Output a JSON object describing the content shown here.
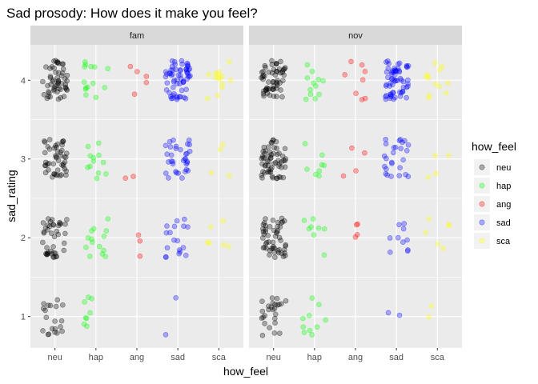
{
  "chart_data": {
    "type": "scatter",
    "title": "Sad prosody: How does it make you feel?",
    "xlabel": "how_feel",
    "ylabel": "sad_rating",
    "ylim": [
      0.6,
      4.45
    ],
    "categories": [
      "neu",
      "hap",
      "ang",
      "sad",
      "sca"
    ],
    "yticks": [
      1,
      2,
      3,
      4
    ],
    "jitter": {
      "x": 0.3,
      "y": 0.25
    },
    "facets": [
      "fam",
      "nov"
    ],
    "legend": {
      "title": "how_feel",
      "placement": "right",
      "entries": [
        "neu",
        "hap",
        "ang",
        "sad",
        "sca"
      ]
    },
    "colors": {
      "neu": "#000000",
      "hap": "#00ff00",
      "ang": "#ff0000",
      "sad": "#0000ff",
      "sca": "#ffff00",
      "panel_bg": "#ebebeb",
      "strip_bg": "#d9d9d9",
      "grid": "#ffffff"
    },
    "point_alpha": 0.3,
    "counts": {
      "fam": {
        "neu": [
          20,
          42,
          48,
          55
        ],
        "hap": [
          8,
          14,
          12,
          14
        ],
        "ang": [
          0,
          3,
          2,
          5
        ],
        "sad": [
          2,
          18,
          34,
          62
        ],
        "sca": [
          0,
          6,
          4,
          14
        ]
      },
      "nov": {
        "neu": [
          26,
          52,
          60,
          58
        ],
        "hap": [
          10,
          8,
          8,
          12
        ],
        "ang": [
          0,
          4,
          4,
          8
        ],
        "sad": [
          2,
          10,
          26,
          62
        ],
        "sca": [
          2,
          6,
          4,
          12
        ]
      }
    }
  }
}
